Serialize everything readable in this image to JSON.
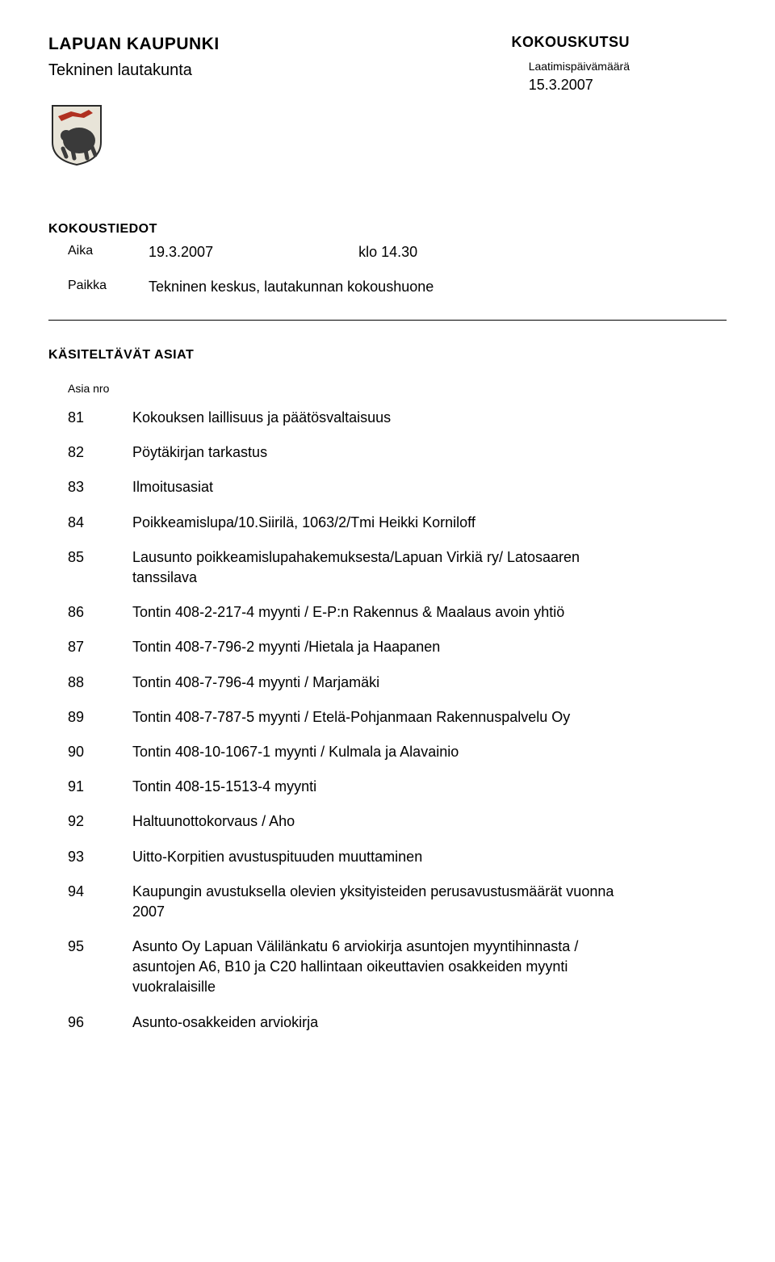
{
  "header": {
    "org": "LAPUAN KAUPUNKI",
    "doc_type": "KOKOUSKUTSU",
    "board": "Tekninen lautakunta",
    "date_label": "Laatimispäivämäärä",
    "date_value": "15.3.2007"
  },
  "meeting_info": {
    "section_label": "KOKOUSTIEDOT",
    "time_key": "Aika",
    "time_date": "19.3.2007",
    "time_clock": "klo 14.30",
    "place_key": "Paikka",
    "place_value": "Tekninen keskus, lautakunnan kokoushuone"
  },
  "agenda": {
    "section_title": "KÄSITELTÄVÄT ASIAT",
    "col_header": "Asia nro",
    "items": [
      {
        "num": "81",
        "text": "Kokouksen laillisuus ja päätösvaltaisuus"
      },
      {
        "num": "82",
        "text": "Pöytäkirjan tarkastus"
      },
      {
        "num": "83",
        "text": "Ilmoitusasiat"
      },
      {
        "num": "84",
        "text": "Poikkeamislupa/10.Siirilä, 1063/2/Tmi Heikki Korniloff"
      },
      {
        "num": "85",
        "text": "Lausunto poikkeamislupahakemuksesta/Lapuan Virkiä ry/ Latosaaren tanssilava"
      },
      {
        "num": "86",
        "text": "Tontin 408-2-217-4 myynti / E-P:n Rakennus & Maalaus avoin yhtiö"
      },
      {
        "num": "87",
        "text": "Tontin 408-7-796-2 myynti /Hietala ja Haapanen"
      },
      {
        "num": "88",
        "text": "Tontin 408-7-796-4 myynti / Marjamäki"
      },
      {
        "num": "89",
        "text": "Tontin 408-7-787-5 myynti / Etelä-Pohjanmaan Rakennuspalvelu Oy"
      },
      {
        "num": "90",
        "text": "Tontin 408-10-1067-1 myynti / Kulmala ja Alavainio"
      },
      {
        "num": "91",
        "text": "Tontin 408-15-1513-4 myynti"
      },
      {
        "num": "92",
        "text": "Haltuunottokorvaus / Aho"
      },
      {
        "num": "93",
        "text": "Uitto-Korpitien avustuspituuden muuttaminen"
      },
      {
        "num": "94",
        "text": "Kaupungin avustuksella olevien yksityisteiden perusavustusmäärät vuonna 2007"
      },
      {
        "num": "95",
        "text": "Asunto Oy Lapuan Välilänkatu 6 arviokirja asuntojen myyntihinnasta / asuntojen A6, B10 ja C20 hallintaan oikeuttavien osakkeiden myynti vuokralaisille"
      },
      {
        "num": "96",
        "text": "Asunto-osakkeiden arviokirja"
      }
    ]
  },
  "colors": {
    "text": "#000000",
    "bg": "#ffffff",
    "crest_border": "#2a2a2a",
    "crest_red": "#b03020",
    "crest_dark": "#3a3a3a",
    "crest_light": "#e8e4d8"
  }
}
